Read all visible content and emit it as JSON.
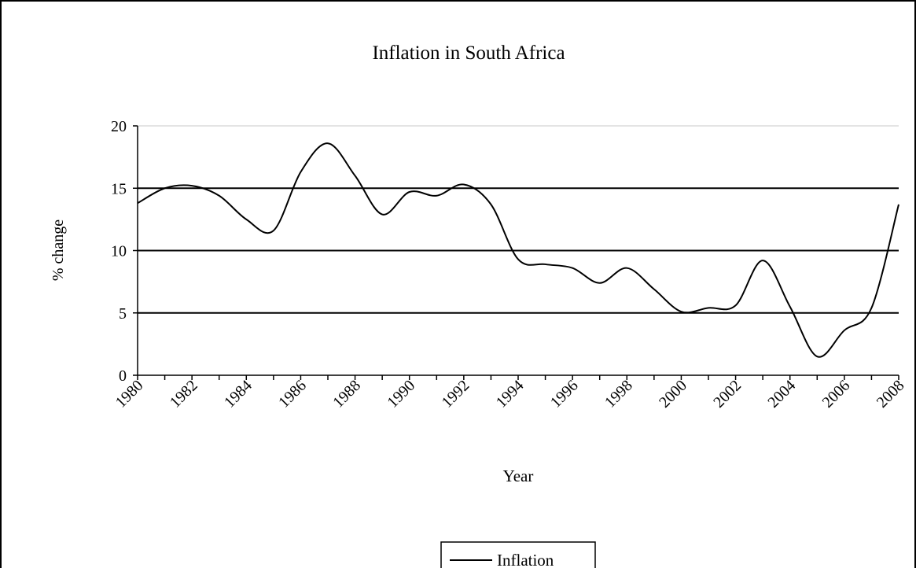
{
  "chart_data": {
    "type": "line",
    "title": "Inflation in South Africa",
    "x_label": "Year",
    "y_label": "% change",
    "x": [
      1980,
      1981,
      1982,
      1983,
      1984,
      1985,
      1986,
      1987,
      1988,
      1989,
      1990,
      1991,
      1992,
      1993,
      1994,
      1995,
      1996,
      1997,
      1998,
      1999,
      2000,
      2001,
      2002,
      2003,
      2004,
      2005,
      2006,
      2007,
      2008
    ],
    "series": [
      {
        "name": "Inflation",
        "color": "#000000",
        "values": [
          13.8,
          15.0,
          15.2,
          14.4,
          12.5,
          11.6,
          16.3,
          18.6,
          16.0,
          12.9,
          14.7,
          14.4,
          15.3,
          13.7,
          9.3,
          8.9,
          8.6,
          7.4,
          8.6,
          6.9,
          5.1,
          5.4,
          5.6,
          9.2,
          5.5,
          1.5,
          3.6,
          5.4,
          13.7
        ]
      }
    ],
    "xlim": [
      1980,
      2008
    ],
    "xticks": [
      1980,
      1982,
      1984,
      1986,
      1988,
      1990,
      1992,
      1994,
      1996,
      1998,
      2000,
      2002,
      2004,
      2006,
      2008
    ],
    "ylim": [
      0,
      20
    ],
    "yticks": [
      0,
      5,
      10,
      15,
      20
    ],
    "grid": true,
    "legend": "bottom"
  }
}
